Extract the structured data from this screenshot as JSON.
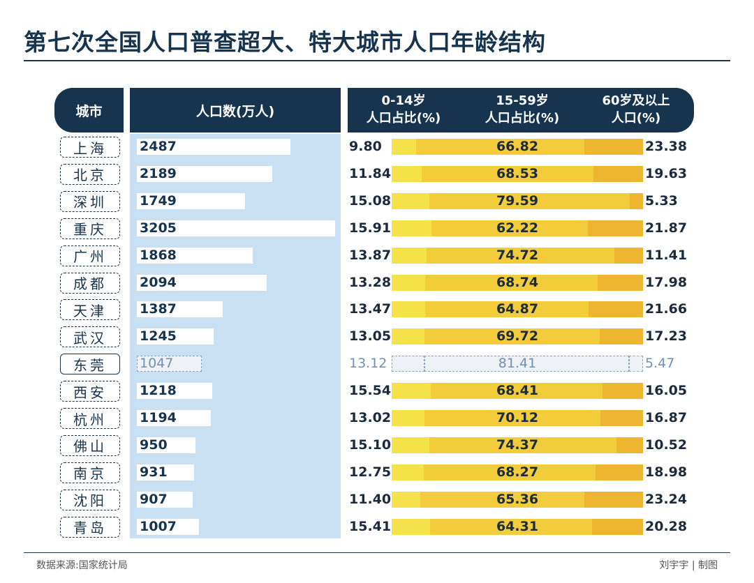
{
  "title": "第七次全国人口普查超大、特大城市人口年龄结构",
  "headers": {
    "city": "城市",
    "population": "人口数(万人)",
    "age_0_14": [
      "0-14岁",
      "人口占比(%)"
    ],
    "age_15_59": [
      "15-59岁",
      "人口占比(%)"
    ],
    "age_60": [
      "60岁及以上",
      "人口(%)"
    ]
  },
  "source": "数据来源:国家统计局",
  "credit": "刘宇宇 | 制图",
  "highlight_city": "东莞",
  "colors": {
    "navy": "#17344f",
    "pop_bg": "#c8e0f2",
    "age_0_14": "#f5e14a",
    "age_15_59": "#f3cc3c",
    "age_60": "#eeb530",
    "highlight": "#6f8fb4"
  },
  "chart_data": {
    "type": "table",
    "title": "第七次全国人口普查超大、特大城市人口年龄结构",
    "columns": [
      "城市",
      "人口数(万人)",
      "0-14岁人口占比(%)",
      "15-59岁人口占比(%)",
      "60岁及以上人口(%)"
    ],
    "rows": [
      {
        "city": "上海",
        "population": "2487",
        "age_0_14": "9.80",
        "age_15_59": "66.82",
        "age_60": "23.38"
      },
      {
        "city": "北京",
        "population": "2189",
        "age_0_14": "11.84",
        "age_15_59": "68.53",
        "age_60": "19.63"
      },
      {
        "city": "深圳",
        "population": "1749",
        "age_0_14": "15.08",
        "age_15_59": "79.59",
        "age_60": "5.33"
      },
      {
        "city": "重庆",
        "population": "3205",
        "age_0_14": "15.91",
        "age_15_59": "62.22",
        "age_60": "21.87"
      },
      {
        "city": "广州",
        "population": "1868",
        "age_0_14": "13.87",
        "age_15_59": "74.72",
        "age_60": "11.41"
      },
      {
        "city": "成都",
        "population": "2094",
        "age_0_14": "13.28",
        "age_15_59": "68.74",
        "age_60": "17.98"
      },
      {
        "city": "天津",
        "population": "1387",
        "age_0_14": "13.47",
        "age_15_59": "64.87",
        "age_60": "21.66"
      },
      {
        "city": "武汉",
        "population": "1245",
        "age_0_14": "13.05",
        "age_15_59": "69.72",
        "age_60": "17.23"
      },
      {
        "city": "东莞",
        "population": "1047",
        "age_0_14": "13.12",
        "age_15_59": "81.41",
        "age_60": "5.47"
      },
      {
        "city": "西安",
        "population": "1218",
        "age_0_14": "15.54",
        "age_15_59": "68.41",
        "age_60": "16.05"
      },
      {
        "city": "杭州",
        "population": "1194",
        "age_0_14": "13.02",
        "age_15_59": "70.12",
        "age_60": "16.87"
      },
      {
        "city": "佛山",
        "population": "950",
        "age_0_14": "15.10",
        "age_15_59": "74.37",
        "age_60": "10.52"
      },
      {
        "city": "南京",
        "population": "931",
        "age_0_14": "12.75",
        "age_15_59": "68.27",
        "age_60": "18.98"
      },
      {
        "city": "沈阳",
        "population": "907",
        "age_0_14": "11.40",
        "age_15_59": "65.36",
        "age_60": "23.24"
      },
      {
        "city": "青岛",
        "population": "1007",
        "age_0_14": "15.41",
        "age_15_59": "64.31",
        "age_60": "20.28"
      }
    ]
  }
}
